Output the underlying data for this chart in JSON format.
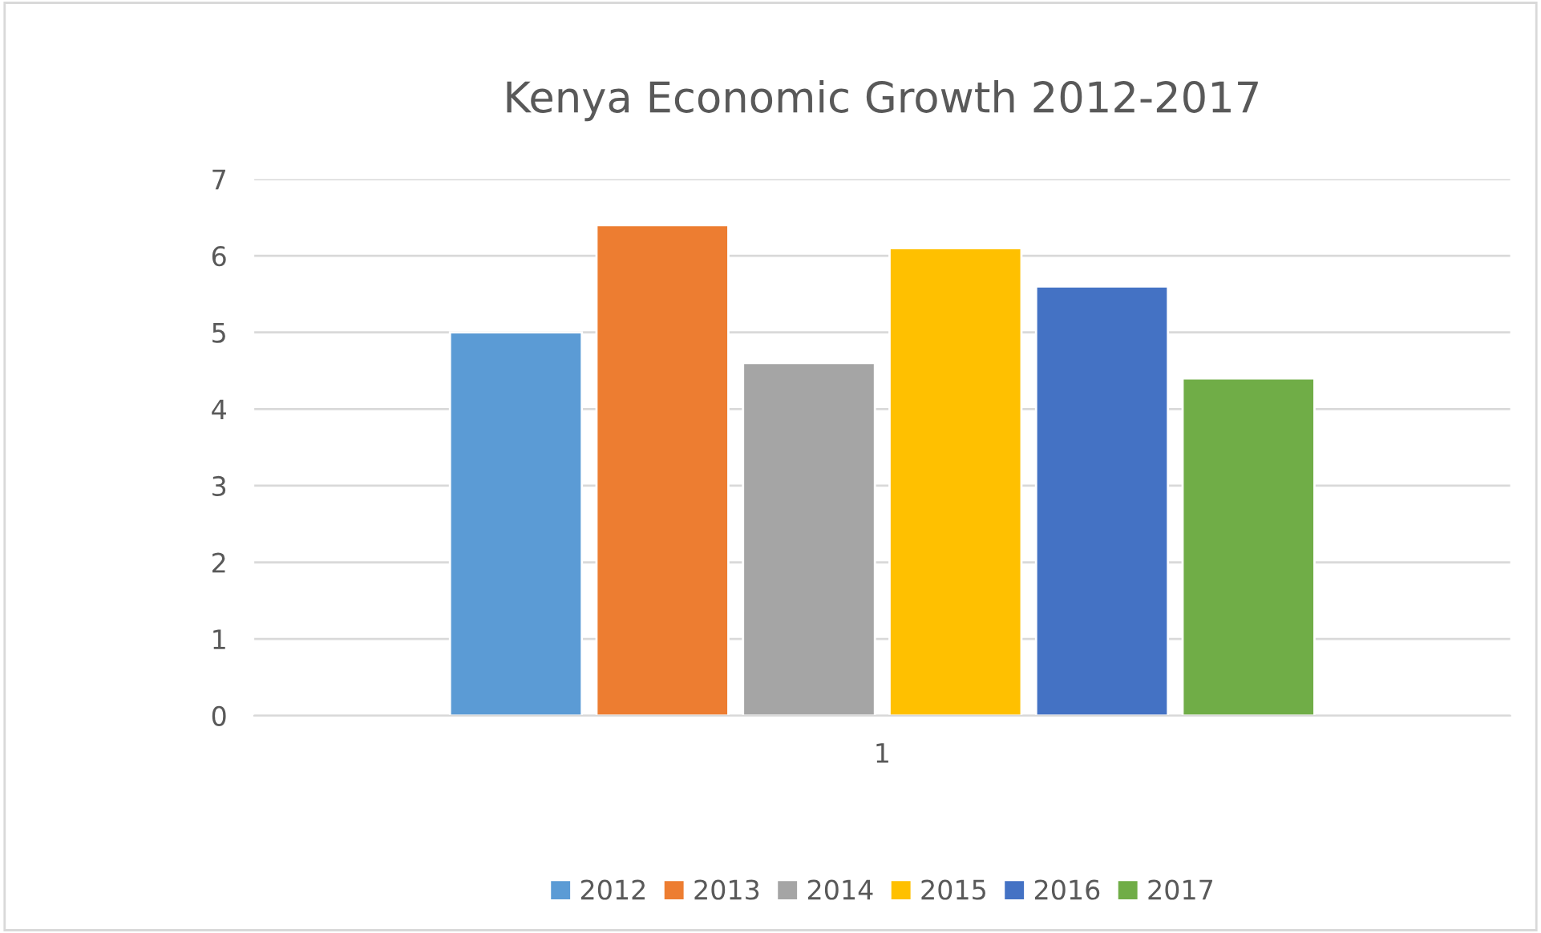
{
  "chart_data": {
    "type": "bar",
    "title": "Kenya Economic Growth 2012-2017",
    "categories": [
      "1"
    ],
    "series": [
      {
        "name": "2012",
        "color": "#5b9bd5",
        "values": [
          5.0
        ]
      },
      {
        "name": "2013",
        "color": "#ed7d31",
        "values": [
          6.4
        ]
      },
      {
        "name": "2014",
        "color": "#a5a5a5",
        "values": [
          4.6
        ]
      },
      {
        "name": "2015",
        "color": "#ffc000",
        "values": [
          6.1
        ]
      },
      {
        "name": "2016",
        "color": "#4472c4",
        "values": [
          5.6
        ]
      },
      {
        "name": "2017",
        "color": "#70ad47",
        "values": [
          4.4
        ]
      }
    ],
    "ylim": [
      0,
      7
    ],
    "yticks": [
      0,
      1,
      2,
      3,
      4,
      5,
      6,
      7
    ],
    "grid": "y",
    "legend": "bottom"
  }
}
